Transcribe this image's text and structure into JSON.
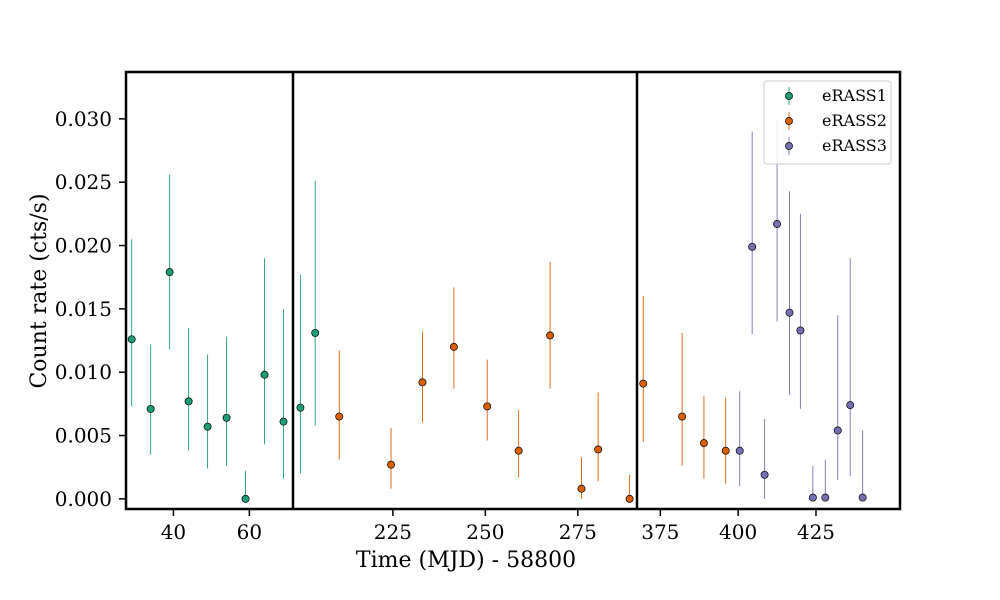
{
  "chart_data": {
    "type": "scatter",
    "title": "",
    "ylabel": "Count rate (cts/s)",
    "xlabel": "Time (MJD) - 58800",
    "ylim": [
      -0.0008,
      0.0337
    ],
    "y_ticks": [
      {
        "value": 0.0,
        "label": "0.000"
      },
      {
        "value": 0.005,
        "label": "0.005"
      },
      {
        "value": 0.01,
        "label": "0.010"
      },
      {
        "value": 0.015,
        "label": "0.015"
      },
      {
        "value": 0.02,
        "label": "0.020"
      },
      {
        "value": 0.025,
        "label": "0.025"
      },
      {
        "value": 0.03,
        "label": "0.030"
      }
    ],
    "panels": [
      {
        "name": "panel-1",
        "xlim": [
          27.5,
          71.5
        ],
        "x_ticks": [
          {
            "value": 40,
            "label": "40"
          },
          {
            "value": 60,
            "label": "60"
          }
        ]
      },
      {
        "name": "panel-2",
        "xlim": [
          198,
          291
        ],
        "x_ticks": [
          {
            "value": 225,
            "label": "225"
          },
          {
            "value": 250,
            "label": "250"
          },
          {
            "value": 275,
            "label": "275"
          }
        ]
      },
      {
        "name": "panel-3",
        "xlim": [
          367.5,
          452
        ],
        "x_ticks": [
          {
            "value": 375,
            "label": "375"
          },
          {
            "value": 400,
            "label": "400"
          },
          {
            "value": 425,
            "label": "425"
          }
        ]
      }
    ],
    "legend_position": "top-right",
    "series": [
      {
        "name": "eRASS1",
        "color": "#1b9e77",
        "points": [
          {
            "panel": 0,
            "x": 29.0,
            "y": 0.0126,
            "lo": 0.0073,
            "hi": 0.0205
          },
          {
            "panel": 0,
            "x": 34.0,
            "y": 0.0071,
            "lo": 0.0035,
            "hi": 0.0122
          },
          {
            "panel": 0,
            "x": 39.0,
            "y": 0.0179,
            "lo": 0.0118,
            "hi": 0.0256
          },
          {
            "panel": 0,
            "x": 44.0,
            "y": 0.0077,
            "lo": 0.0038,
            "hi": 0.0135
          },
          {
            "panel": 0,
            "x": 49.0,
            "y": 0.0057,
            "lo": 0.0024,
            "hi": 0.0114
          },
          {
            "panel": 0,
            "x": 54.0,
            "y": 0.0064,
            "lo": 0.0026,
            "hi": 0.0128
          },
          {
            "panel": 0,
            "x": 59.0,
            "y": 0.0,
            "lo": 0.0,
            "hi": 0.0022
          },
          {
            "panel": 0,
            "x": 64.0,
            "y": 0.0098,
            "lo": 0.0043,
            "hi": 0.019
          },
          {
            "panel": 0,
            "x": 69.0,
            "y": 0.0061,
            "lo": 0.0016,
            "hi": 0.015
          },
          {
            "panel": 1,
            "x": 200.0,
            "y": 0.0072,
            "lo": 0.002,
            "hi": 0.0177
          },
          {
            "panel": 1,
            "x": 204.0,
            "y": 0.0131,
            "lo": 0.0058,
            "hi": 0.0251
          }
        ]
      },
      {
        "name": "eRASS2",
        "color": "#d95f02",
        "points": [
          {
            "panel": 1,
            "x": 210.5,
            "y": 0.0065,
            "lo": 0.0031,
            "hi": 0.0117
          },
          {
            "panel": 1,
            "x": 224.5,
            "y": 0.0027,
            "lo": 0.0008,
            "hi": 0.0056
          },
          {
            "panel": 1,
            "x": 233.0,
            "y": 0.0092,
            "lo": 0.006,
            "hi": 0.0132
          },
          {
            "panel": 1,
            "x": 241.5,
            "y": 0.012,
            "lo": 0.0087,
            "hi": 0.0167
          },
          {
            "panel": 1,
            "x": 250.5,
            "y": 0.0073,
            "lo": 0.0046,
            "hi": 0.011
          },
          {
            "panel": 1,
            "x": 259.0,
            "y": 0.0038,
            "lo": 0.0017,
            "hi": 0.007
          },
          {
            "panel": 1,
            "x": 267.5,
            "y": 0.0129,
            "lo": 0.0087,
            "hi": 0.0187
          },
          {
            "panel": 1,
            "x": 276.0,
            "y": 0.0008,
            "lo": 0.0,
            "hi": 0.0033
          },
          {
            "panel": 1,
            "x": 280.5,
            "y": 0.0039,
            "lo": 0.0014,
            "hi": 0.0084
          },
          {
            "panel": 1,
            "x": 289.0,
            "y": 0.0,
            "lo": 0.0,
            "hi": 0.0019
          },
          {
            "panel": 2,
            "x": 369.5,
            "y": 0.0091,
            "lo": 0.0045,
            "hi": 0.016
          },
          {
            "panel": 2,
            "x": 382.0,
            "y": 0.0065,
            "lo": 0.0026,
            "hi": 0.0131
          },
          {
            "panel": 2,
            "x": 389.0,
            "y": 0.0044,
            "lo": 0.0016,
            "hi": 0.0081
          },
          {
            "panel": 2,
            "x": 396.0,
            "y": 0.0038,
            "lo": 0.0012,
            "hi": 0.008
          }
        ]
      },
      {
        "name": "eRASS3",
        "color": "#7570b3",
        "points": [
          {
            "panel": 2,
            "x": 400.5,
            "y": 0.0038,
            "lo": 0.001,
            "hi": 0.0085
          },
          {
            "panel": 2,
            "x": 404.5,
            "y": 0.0199,
            "lo": 0.013,
            "hi": 0.029
          },
          {
            "panel": 2,
            "x": 408.5,
            "y": 0.0019,
            "lo": 0.0,
            "hi": 0.0063
          },
          {
            "panel": 2,
            "x": 412.5,
            "y": 0.0217,
            "lo": 0.014,
            "hi": 0.03
          },
          {
            "panel": 2,
            "x": 416.5,
            "y": 0.0147,
            "lo": 0.0082,
            "hi": 0.0243
          },
          {
            "panel": 2,
            "x": 420.0,
            "y": 0.0133,
            "lo": 0.0071,
            "hi": 0.0225
          },
          {
            "panel": 2,
            "x": 424.0,
            "y": 0.0001,
            "lo": 0.0,
            "hi": 0.0026
          },
          {
            "panel": 2,
            "x": 428.0,
            "y": 0.0001,
            "lo": 0.0,
            "hi": 0.0031
          },
          {
            "panel": 2,
            "x": 432.0,
            "y": 0.0054,
            "lo": 0.0015,
            "hi": 0.0145
          },
          {
            "panel": 2,
            "x": 436.0,
            "y": 0.0074,
            "lo": 0.0018,
            "hi": 0.019
          },
          {
            "panel": 2,
            "x": 440.0,
            "y": 0.0001,
            "lo": 0.0,
            "hi": 0.0054
          }
        ]
      }
    ]
  }
}
